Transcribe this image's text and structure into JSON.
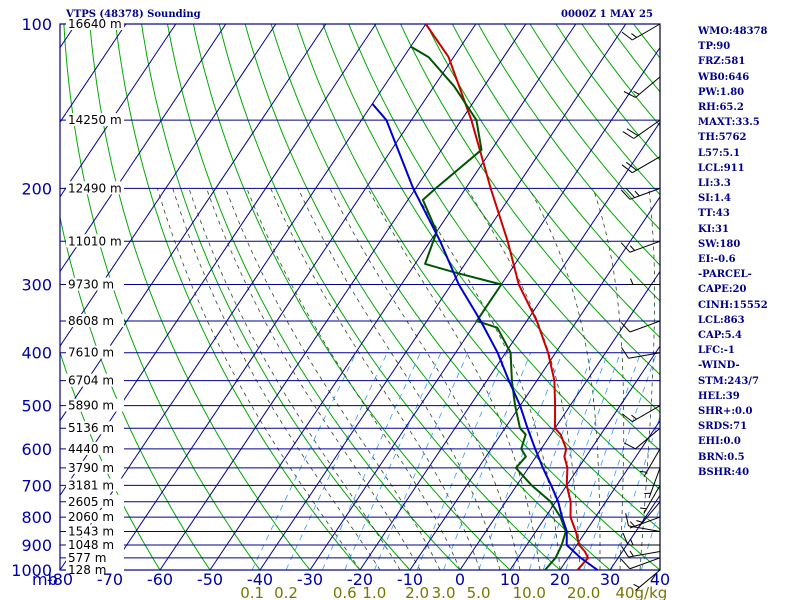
{
  "header": {
    "title": "VTPS (48378) Sounding",
    "timestamp": "0000Z  1 MAY 25"
  },
  "indices": [
    "WMO:48378",
    "TP:90",
    "FRZ:581",
    "WB0:646",
    "PW:1.80",
    "RH:65.2",
    "MAXT:33.5",
    "TH:5762",
    "L57:5.1",
    "LCL:911",
    "LI:3.3",
    "SI:1.4",
    "TT:43",
    "KI:31",
    "SW:180",
    "EI:-0.6",
    "-PARCEL-",
    "CAPE:20",
    "CINH:15552",
    "LCL:863",
    "CAP:5.4",
    "LFC:-1",
    "-WIND-",
    "STM:243/7",
    "HEL:39",
    "SHR+:0.0",
    "SRDS:71",
    "EHI:0.0",
    "BRN:0.5",
    "BSHR:40"
  ],
  "colors": {
    "isobar": "#00008b",
    "isotherm": "#00008b",
    "dry_adiabat": "#00aa00",
    "moist_adiabat": "#2a4a2a",
    "mixing_ratio": "#3399ff",
    "temperature": "#cc0000",
    "dewpoint": "#005500",
    "parcel": "#0000cc",
    "pressure_label": "#0000aa",
    "height_label": "#000000",
    "mixing_label": "#777700"
  },
  "chart_data": {
    "type": "skew-t",
    "title": "VTPS (48378) Sounding",
    "ylabel": "mb",
    "xlabel": "",
    "xlim": [
      -80,
      40
    ],
    "ylim": [
      1000,
      100
    ],
    "y_scale": "log",
    "grid": true,
    "pressure_levels": [
      100,
      200,
      300,
      400,
      500,
      600,
      700,
      800,
      900,
      1000
    ],
    "temperature_ticks": [
      -80,
      -70,
      -60,
      -50,
      -40,
      -30,
      -20,
      -10,
      0,
      10,
      20,
      30,
      40
    ],
    "height_labels": [
      {
        "p": 100,
        "text": "16640 m"
      },
      {
        "p": 150,
        "text": "14250 m"
      },
      {
        "p": 200,
        "text": "12490 m"
      },
      {
        "p": 250,
        "text": "11010 m"
      },
      {
        "p": 300,
        "text": "9730 m"
      },
      {
        "p": 350,
        "text": "8608 m"
      },
      {
        "p": 400,
        "text": "7610 m"
      },
      {
        "p": 450,
        "text": "6704 m"
      },
      {
        "p": 500,
        "text": "5890 m"
      },
      {
        "p": 550,
        "text": "5136 m"
      },
      {
        "p": 600,
        "text": "4440 m"
      },
      {
        "p": 650,
        "text": "3790 m"
      },
      {
        "p": 700,
        "text": "3181 m"
      },
      {
        "p": 750,
        "text": "2605 m"
      },
      {
        "p": 800,
        "text": "2060 m"
      },
      {
        "p": 850,
        "text": "1543 m"
      },
      {
        "p": 900,
        "text": "1048 m"
      },
      {
        "p": 950,
        "text": "577 m"
      },
      {
        "p": 1000,
        "text": "128 m"
      }
    ],
    "mixing_ratio_labels": [
      {
        "w": 0.1,
        "text": "0.1"
      },
      {
        "w": 0.2,
        "text": "0.2"
      },
      {
        "w": 0.6,
        "text": "0.6"
      },
      {
        "w": 1.0,
        "text": "1.0"
      },
      {
        "w": 2.0,
        "text": "2.0"
      },
      {
        "w": 3.0,
        "text": "3.0"
      },
      {
        "w": 5.0,
        "text": "5.0"
      },
      {
        "w": 10.0,
        "text": "10.0"
      },
      {
        "w": 20.0,
        "text": "20.0"
      },
      {
        "w": 40.0,
        "text": "40g/kg"
      }
    ],
    "series": [
      {
        "key": "temperature",
        "points": [
          [
            1000,
            23.5
          ],
          [
            950,
            24
          ],
          [
            925,
            22.5
          ],
          [
            900,
            20.5
          ],
          [
            850,
            18
          ],
          [
            800,
            15
          ],
          [
            750,
            13
          ],
          [
            700,
            10
          ],
          [
            650,
            7.8
          ],
          [
            620,
            5.7
          ],
          [
            600,
            5
          ],
          [
            565,
            2
          ],
          [
            550,
            0
          ],
          [
            500,
            -3
          ],
          [
            450,
            -6.5
          ],
          [
            400,
            -11.5
          ],
          [
            350,
            -18
          ],
          [
            300,
            -26.5
          ],
          [
            250,
            -34.5
          ],
          [
            200,
            -45
          ],
          [
            150,
            -58
          ],
          [
            130,
            -65
          ],
          [
            115,
            -71
          ],
          [
            100,
            -80
          ]
        ]
      },
      {
        "key": "dewpoint",
        "points": [
          [
            1000,
            17
          ],
          [
            950,
            17.5
          ],
          [
            900,
            17
          ],
          [
            850,
            16
          ],
          [
            800,
            13
          ],
          [
            750,
            9
          ],
          [
            700,
            3
          ],
          [
            650,
            -2.5
          ],
          [
            620,
            -2
          ],
          [
            600,
            -4
          ],
          [
            565,
            -5
          ],
          [
            550,
            -7
          ],
          [
            500,
            -11
          ],
          [
            450,
            -15
          ],
          [
            400,
            -19
          ],
          [
            360,
            -25
          ],
          [
            350,
            -30
          ],
          [
            330,
            -30
          ],
          [
            300,
            -30
          ],
          [
            285,
            -41
          ],
          [
            275,
            -48
          ],
          [
            240,
            -50
          ],
          [
            210,
            -57
          ],
          [
            200,
            -56
          ],
          [
            170,
            -52
          ],
          [
            150,
            -57
          ],
          [
            130,
            -66
          ],
          [
            115,
            -75
          ],
          [
            110,
            -80
          ]
        ]
      },
      {
        "key": "parcel",
        "points": [
          [
            1000,
            27.5
          ],
          [
            950,
            22.5
          ],
          [
            900,
            18
          ],
          [
            850,
            16.2
          ],
          [
            800,
            13.3
          ],
          [
            750,
            10.5
          ],
          [
            700,
            6.9
          ],
          [
            650,
            2.9
          ],
          [
            600,
            -1.2
          ],
          [
            550,
            -5.5
          ],
          [
            500,
            -10
          ],
          [
            450,
            -15.6
          ],
          [
            400,
            -21.6
          ],
          [
            350,
            -29.2
          ],
          [
            300,
            -38.5
          ],
          [
            250,
            -48
          ],
          [
            200,
            -60.5
          ],
          [
            150,
            -75
          ],
          [
            140,
            -80
          ]
        ]
      }
    ],
    "wind_profile": [
      {
        "p": 1000,
        "dir": 230,
        "spd": 5
      },
      {
        "p": 950,
        "dir": 250,
        "spd": 10
      },
      {
        "p": 925,
        "dir": 260,
        "spd": 15
      },
      {
        "p": 900,
        "dir": 270,
        "spd": 15
      },
      {
        "p": 850,
        "dir": 280,
        "spd": 10
      },
      {
        "p": 800,
        "dir": 250,
        "spd": 5
      },
      {
        "p": 750,
        "dir": 220,
        "spd": 5
      },
      {
        "p": 700,
        "dir": 210,
        "spd": 5
      },
      {
        "p": 650,
        "dir": 200,
        "spd": 5
      },
      {
        "p": 600,
        "dir": 210,
        "spd": 5
      },
      {
        "p": 550,
        "dir": 230,
        "spd": 10
      },
      {
        "p": 500,
        "dir": 240,
        "spd": 15
      },
      {
        "p": 400,
        "dir": 260,
        "spd": 10
      },
      {
        "p": 350,
        "dir": 250,
        "spd": 10
      },
      {
        "p": 300,
        "dir": 270,
        "spd": 5
      },
      {
        "p": 250,
        "dir": 250,
        "spd": 15
      },
      {
        "p": 200,
        "dir": 250,
        "spd": 25
      },
      {
        "p": 175,
        "dir": 240,
        "spd": 20
      },
      {
        "p": 150,
        "dir": 235,
        "spd": 20
      },
      {
        "p": 125,
        "dir": 230,
        "spd": 15
      },
      {
        "p": 100,
        "dir": 240,
        "spd": 15
      }
    ]
  }
}
